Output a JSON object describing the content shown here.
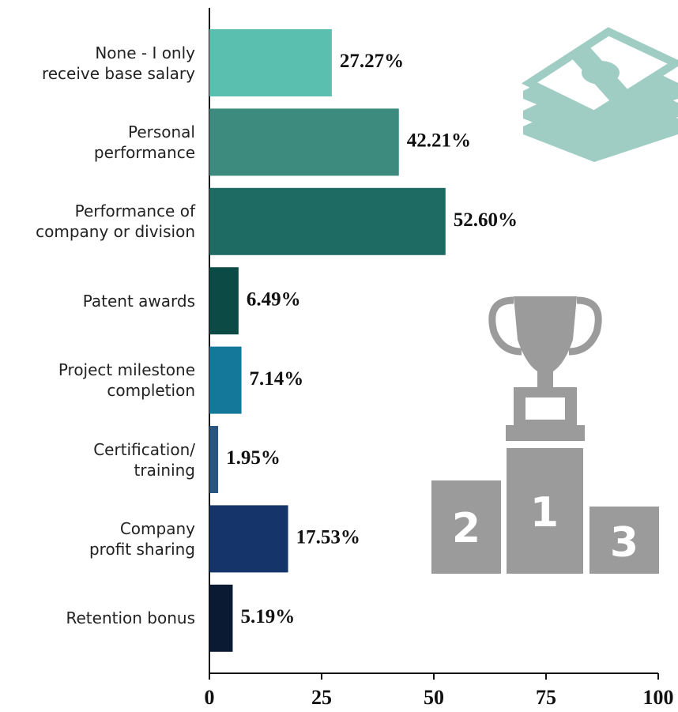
{
  "chart_data": {
    "type": "bar",
    "orientation": "horizontal",
    "categories": [
      "None - I only\nreceive base salary",
      "Personal\nperformance",
      "Performance of\ncompany or division",
      "Patent awards",
      "Project milestone\ncompletion",
      "Certification/\ntraining",
      "Company\nprofit sharing",
      "Retention bonus"
    ],
    "values": [
      27.27,
      42.21,
      52.6,
      6.49,
      7.14,
      1.95,
      17.53,
      5.19
    ],
    "value_labels": [
      "27.27%",
      "42.21%",
      "52.60%",
      "6.49%",
      "7.14%",
      "1.95%",
      "17.53%",
      "5.19%"
    ],
    "colors": [
      "#5bbfb0",
      "#3d8a7e",
      "#1d6b63",
      "#0b4a45",
      "#13789a",
      "#2a557e",
      "#14346a",
      "#0b1a33"
    ],
    "xlim": [
      0,
      100
    ],
    "xticks": [
      0,
      25,
      50,
      75,
      100
    ],
    "icon_text": [
      "2",
      "1",
      "3"
    ]
  }
}
